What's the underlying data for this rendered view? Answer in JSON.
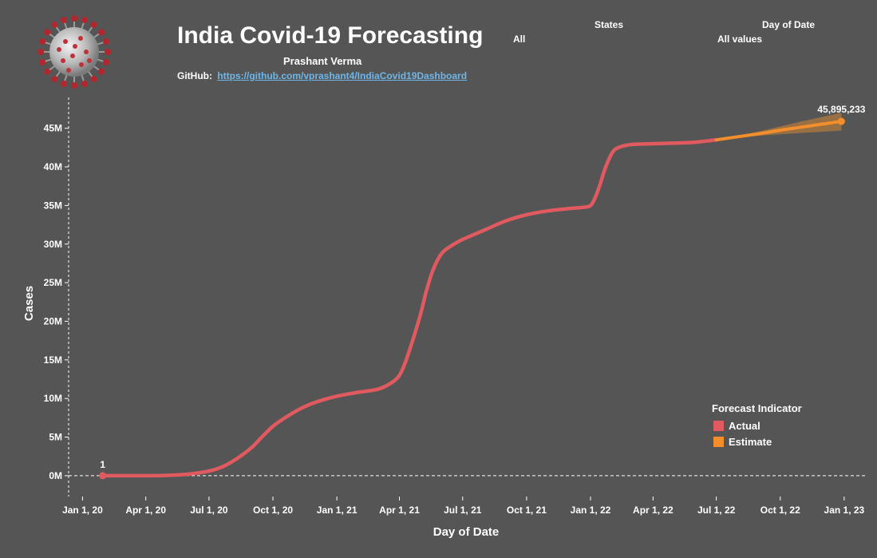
{
  "header": {
    "title": "India Covid-19 Forecasting",
    "author": "Prashant Verma",
    "github_label": "GitHub:",
    "github_link": "https://github.com/vprashant4/IndiaCovid19Dashboard"
  },
  "filters": {
    "states_label": "States",
    "states_value": "All",
    "date_label": "Day of Date",
    "date_value": "All values"
  },
  "icons": {
    "logo": "coronavirus-icon"
  },
  "colors": {
    "background": "#555555",
    "actual": "#e05a5f",
    "estimate": "#f28e2b",
    "band": "#b07a3d"
  },
  "chart_data": {
    "type": "line",
    "title": "India Covid-19 Forecasting",
    "xlabel": "Day of Date",
    "ylabel": "Cases",
    "ylim": [
      -2700000,
      49000000
    ],
    "yticks": [
      0,
      5000000,
      10000000,
      15000000,
      20000000,
      25000000,
      30000000,
      35000000,
      40000000,
      45000000
    ],
    "ytick_labels": [
      "0M",
      "5M",
      "10M",
      "15M",
      "20M",
      "25M",
      "30M",
      "35M",
      "40M",
      "45M"
    ],
    "xticks": [
      "2020-01-01",
      "2020-04-01",
      "2020-07-01",
      "2020-10-01",
      "2021-01-01",
      "2021-04-01",
      "2021-07-01",
      "2021-10-01",
      "2022-01-01",
      "2022-04-01",
      "2022-07-01",
      "2022-10-01",
      "2023-01-01"
    ],
    "xtick_labels": [
      "Jan 1, 20",
      "Apr 1, 20",
      "Jul 1, 20",
      "Oct 1, 20",
      "Jan 1, 21",
      "Apr 1, 21",
      "Jul 1, 21",
      "Oct 1, 21",
      "Jan 1, 22",
      "Apr 1, 22",
      "Jul 1, 22",
      "Oct 1, 22",
      "Jan 1, 23"
    ],
    "xlim": [
      "2019-12-12",
      "2023-01-31"
    ],
    "legend_title": "Forecast Indicator",
    "legend_position": "bottom-right",
    "series": [
      {
        "name": "Actual",
        "points": [
          [
            "2020-01-30",
            1
          ],
          [
            "2020-03-01",
            3
          ],
          [
            "2020-04-01",
            2000
          ],
          [
            "2020-05-01",
            35000
          ],
          [
            "2020-06-01",
            200000
          ],
          [
            "2020-07-01",
            600000
          ],
          [
            "2020-07-20",
            1150000
          ],
          [
            "2020-08-10",
            2200000
          ],
          [
            "2020-09-01",
            3700000
          ],
          [
            "2020-09-15",
            5000000
          ],
          [
            "2020-10-01",
            6400000
          ],
          [
            "2020-10-20",
            7600000
          ],
          [
            "2020-11-10",
            8700000
          ],
          [
            "2020-12-01",
            9500000
          ],
          [
            "2021-01-01",
            10300000
          ],
          [
            "2021-02-01",
            10800000
          ],
          [
            "2021-03-01",
            11200000
          ],
          [
            "2021-03-20",
            12000000
          ],
          [
            "2021-04-01",
            13000000
          ],
          [
            "2021-04-10",
            14800000
          ],
          [
            "2021-04-20",
            17500000
          ],
          [
            "2021-05-01",
            20800000
          ],
          [
            "2021-05-10",
            24000000
          ],
          [
            "2021-05-20",
            26800000
          ],
          [
            "2021-06-01",
            28800000
          ],
          [
            "2021-06-15",
            29800000
          ],
          [
            "2021-07-01",
            30600000
          ],
          [
            "2021-08-01",
            31800000
          ],
          [
            "2021-09-01",
            33000000
          ],
          [
            "2021-10-01",
            33800000
          ],
          [
            "2021-11-01",
            34300000
          ],
          [
            "2021-12-01",
            34600000
          ],
          [
            "2021-12-20",
            34750000
          ],
          [
            "2022-01-01",
            35000000
          ],
          [
            "2022-01-08",
            36100000
          ],
          [
            "2022-01-15",
            37800000
          ],
          [
            "2022-01-22",
            39800000
          ],
          [
            "2022-02-01",
            41800000
          ],
          [
            "2022-02-10",
            42500000
          ],
          [
            "2022-03-01",
            42900000
          ],
          [
            "2022-04-01",
            43000000
          ],
          [
            "2022-05-01",
            43080000
          ],
          [
            "2022-06-01",
            43200000
          ],
          [
            "2022-07-01",
            43500000
          ]
        ]
      },
      {
        "name": "Estimate",
        "points": [
          [
            "2022-07-01",
            43500000
          ],
          [
            "2022-08-01",
            43900000
          ],
          [
            "2022-09-01",
            44300000
          ],
          [
            "2022-10-01",
            44750000
          ],
          [
            "2022-11-01",
            45150000
          ],
          [
            "2022-12-01",
            45550000
          ],
          [
            "2022-12-28",
            45895233
          ]
        ],
        "band_upper": [
          [
            "2022-07-01",
            43500000
          ],
          [
            "2022-09-01",
            44600000
          ],
          [
            "2022-11-01",
            45900000
          ],
          [
            "2022-12-28",
            47000000
          ]
        ],
        "band_lower": [
          [
            "2022-07-01",
            43500000
          ],
          [
            "2022-09-01",
            44050000
          ],
          [
            "2022-11-01",
            44400000
          ],
          [
            "2022-12-28",
            44700000
          ]
        ]
      }
    ],
    "annotations": [
      {
        "label": "1",
        "date": "2020-01-30",
        "value": 1
      },
      {
        "label": "45,895,233",
        "date": "2022-12-28",
        "value": 45895233
      }
    ]
  }
}
